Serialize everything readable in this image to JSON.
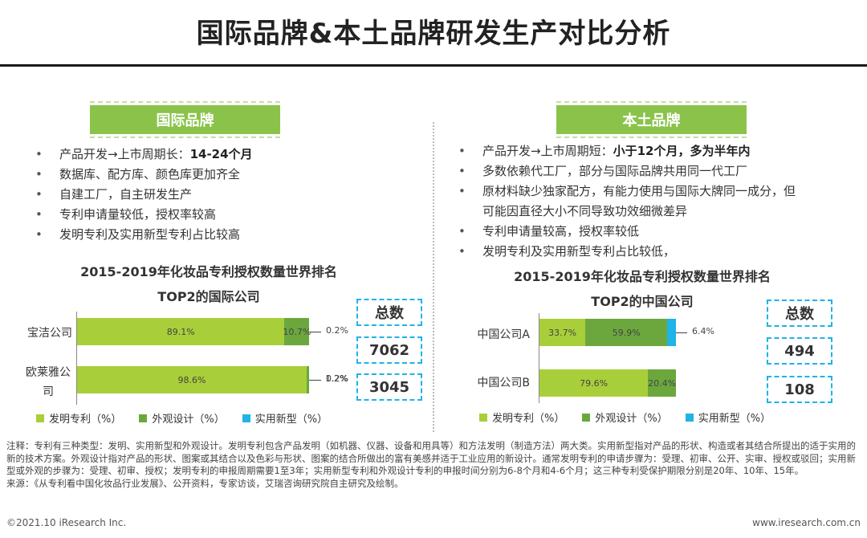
{
  "title": "国际品牌&本土品牌研发生产对比分析",
  "left": {
    "banner": "国际品牌",
    "bullets": [
      {
        "text": "产品开发→上市周期长：",
        "bold": "14-24个月"
      },
      {
        "text": "数据库、配方库、颜色库更加齐全",
        "bold": ""
      },
      {
        "text": "自建工厂，自主研发生产",
        "bold": ""
      },
      {
        "text": "专利申请量较低，授权率较高",
        "bold": ""
      },
      {
        "text": "发明专利及实用新型专利占比较高",
        "bold": ""
      }
    ],
    "chart_title_1": "2015-2019年化妆品专利授权数量世界排名",
    "chart_title_2": "TOP2的国际公司",
    "total_label": "总数",
    "totals": [
      "7062",
      "3045"
    ]
  },
  "right": {
    "banner": "本土品牌",
    "bullets": [
      {
        "text": "产品开发→上市周期短：",
        "bold": "小于12个月，多为半年内"
      },
      {
        "text": "多数依赖代工厂，部分与国际品牌共用同一代工厂",
        "bold": ""
      },
      {
        "text": "原材料缺少独家配方，有能力使用与国际大牌同一成分，但",
        "bold": ""
      },
      {
        "text": "可能因直径大小不同导致功效细微差异",
        "bold": "",
        "cont": true
      },
      {
        "text": "专利申请量较高，授权率较低",
        "bold": ""
      },
      {
        "text": "发明专利及实用新型专利占比较低，",
        "bold": ""
      }
    ],
    "chart_title_1": "2015-2019年化妆品专利授权数量世界排名",
    "chart_title_2": "TOP2的中国公司",
    "total_label": "总数",
    "totals": [
      "494",
      "108"
    ]
  },
  "legend": [
    "发明专利（%）",
    "外观设计（%）",
    "实用新型（%）"
  ],
  "chart_data": [
    {
      "type": "bar",
      "stacked": true,
      "orientation": "horizontal",
      "title": "2015-2019年化妆品专利授权数量世界排名 TOP2的国际公司",
      "categories": [
        "宝洁公司",
        "欧莱雅公司"
      ],
      "series": [
        {
          "name": "发明专利（%）",
          "values": [
            89.1,
            98.6
          ],
          "color": "#a8cf3a"
        },
        {
          "name": "外观设计（%）",
          "values": [
            10.7,
            1.2
          ],
          "color": "#6ca73e"
        },
        {
          "name": "实用新型（%）",
          "values": [
            0.2,
            0.2
          ],
          "color": "#1fb3e8"
        }
      ],
      "labels": [
        [
          "89.1%",
          "10.7%",
          "0.2%"
        ],
        [
          "98.6%",
          "1.2%",
          "0.2%"
        ]
      ]
    },
    {
      "type": "bar",
      "stacked": true,
      "orientation": "horizontal",
      "title": "2015-2019年化妆品专利授权数量世界排名 TOP2的中国公司",
      "categories": [
        "中国公司A",
        "中国公司B"
      ],
      "series": [
        {
          "name": "发明专利（%）",
          "values": [
            33.7,
            79.6
          ],
          "color": "#a8cf3a"
        },
        {
          "name": "外观设计（%）",
          "values": [
            59.9,
            20.4
          ],
          "color": "#6ca73e"
        },
        {
          "name": "实用新型（%）",
          "values": [
            6.4,
            0
          ],
          "color": "#1fb3e8"
        }
      ],
      "labels": [
        [
          "33.7%",
          "59.9%",
          "6.4%"
        ],
        [
          "79.6%",
          "20.4%",
          ""
        ]
      ]
    }
  ],
  "note": "注释：专利有三种类型：发明、实用新型和外观设计。发明专利包含产品发明（如机器、仪器、设备和用具等）和方法发明（制造方法）两大类。实用新型指对产品的形状、构造或者其结合所提出的适于实用的新的技术方案。外观设计指对产品的形状、图案或其结合以及色彩与形状、图案的结合所做出的富有美感并适于工业应用的新设计。通常发明专利的申请步骤为：受理、初审、公开、实审、授权或驳回；实用新型或外观的步骤为：受理、初审、授权；发明专利的申报周期需要1至3年；实用新型专利和外观设计专利的申报时间分别为6-8个月和4-6个月；这三种专利受保护期限分别是20年、10年、15年。",
  "source": "来源：《从专利看中国化妆品行业发展》、公开资料，专家访谈，艾瑞咨询研究院自主研究及绘制。",
  "footer_left": "©2021.10 iResearch Inc.",
  "footer_right": "www.iresearch.com.cn"
}
